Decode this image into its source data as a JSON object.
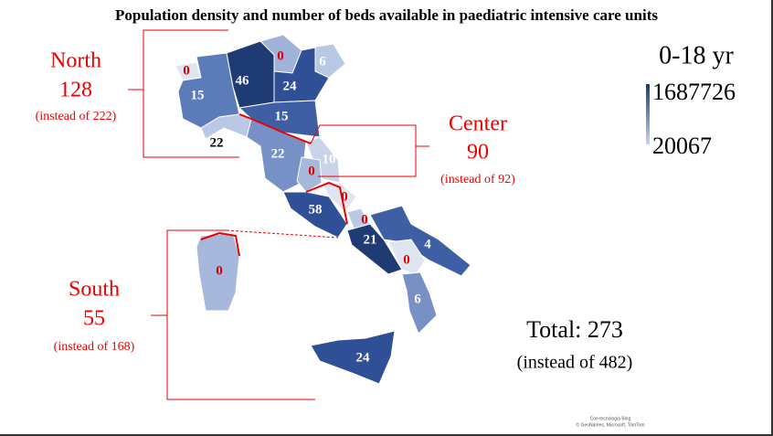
{
  "title": "Population density and number of beds available in paediatric intensive care units",
  "legend": {
    "label": "0-18 yr",
    "max": "1687726",
    "min": "20067"
  },
  "areas": [
    {
      "name": "North",
      "beds": "128",
      "note": "(instead of 222)"
    },
    {
      "name": "Center",
      "beds": "90",
      "note": "(instead of 92)"
    },
    {
      "name": "South",
      "beds": "55",
      "note": "(instead of 168)"
    }
  ],
  "region_beds": [
    0,
    46,
    0,
    6,
    15,
    24,
    15,
    22,
    22,
    10,
    0,
    0,
    58,
    0,
    21,
    4,
    0,
    6,
    0,
    24
  ],
  "total": {
    "label": "Total: 273",
    "note": "(instead of 482)"
  },
  "credit": [
    "Con tecnologia Bing",
    "© GeoNames, Microsoft, TomTom"
  ]
}
